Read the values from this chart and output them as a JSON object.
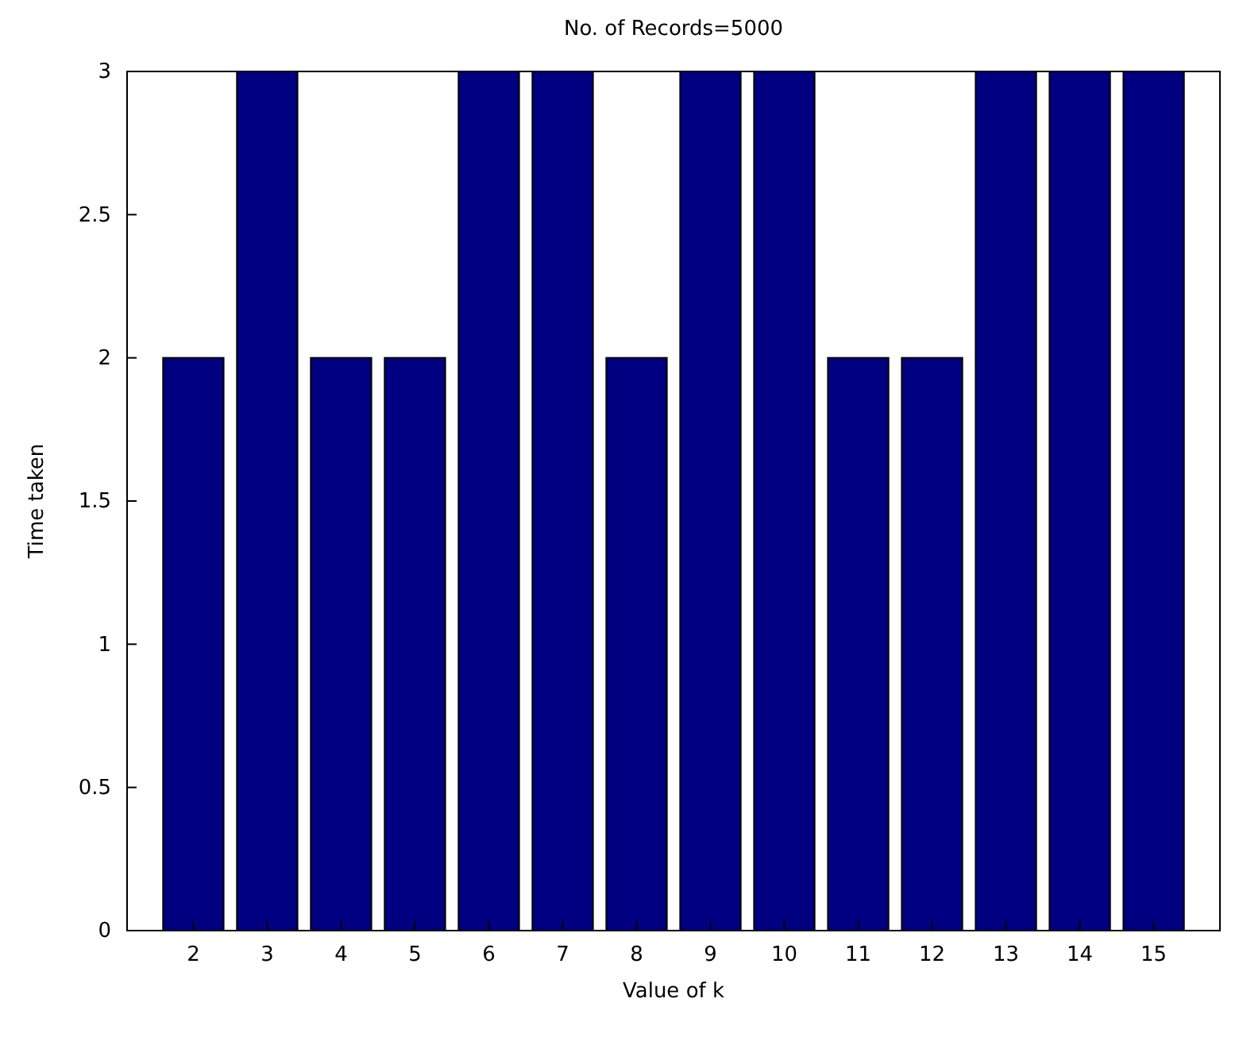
{
  "chart_data": {
    "type": "bar",
    "title": "No. of Records=5000",
    "xlabel": "Value of k",
    "ylabel": "Time taken",
    "categories": [
      "2",
      "3",
      "4",
      "5",
      "6",
      "7",
      "8",
      "9",
      "10",
      "11",
      "12",
      "13",
      "14",
      "15"
    ],
    "values": [
      2,
      3,
      2,
      2,
      3,
      3,
      2,
      3,
      3,
      2,
      2,
      3,
      3,
      3
    ],
    "color": "#000080",
    "ylim": [
      0,
      3
    ],
    "yticks": [
      0,
      0.5,
      1,
      1.5,
      2,
      2.5,
      3
    ],
    "grid": false
  }
}
